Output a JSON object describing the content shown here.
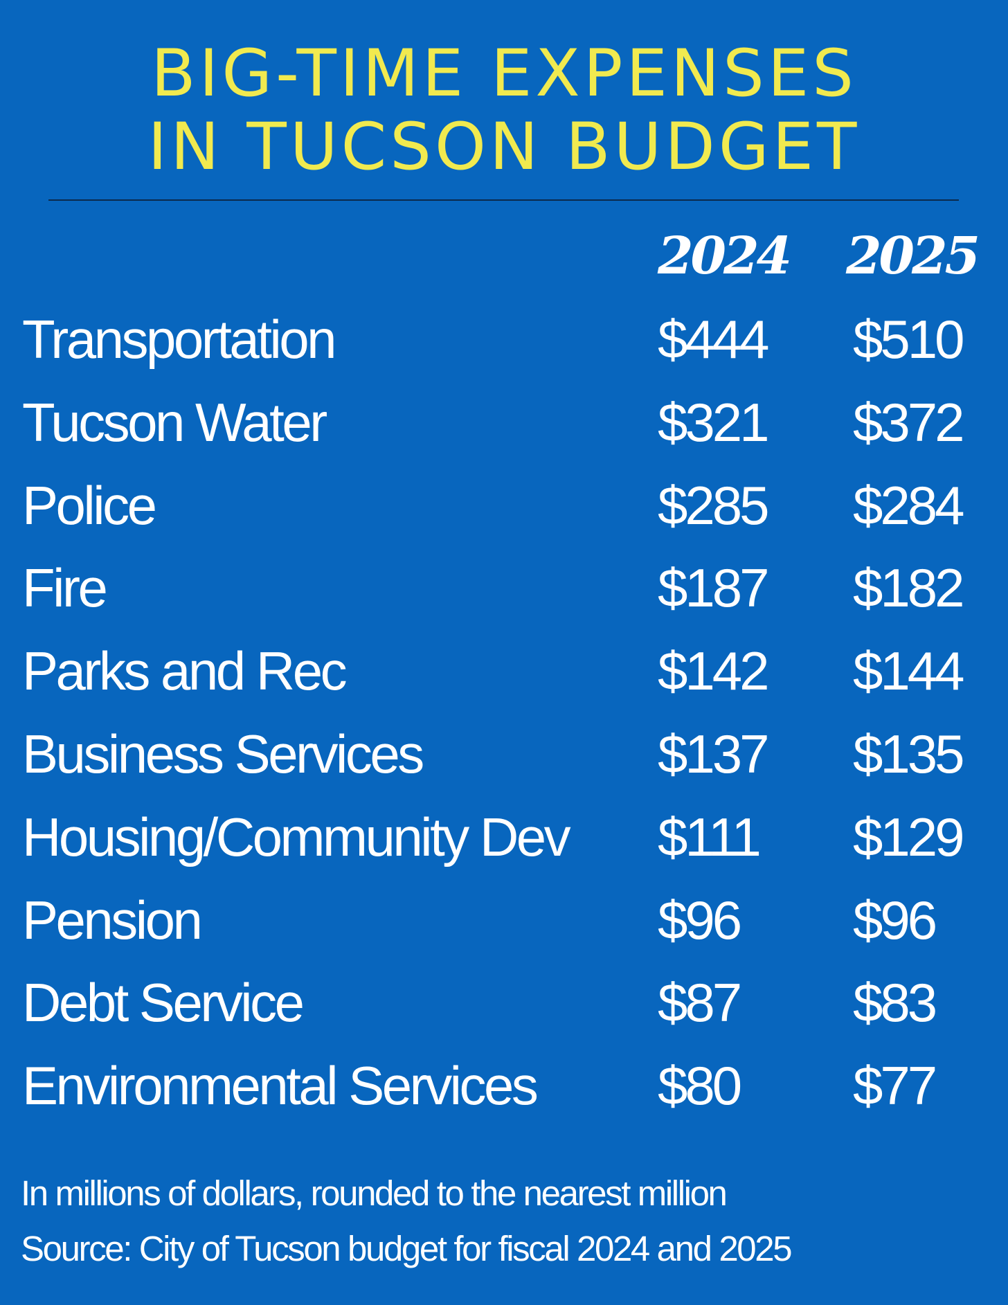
{
  "chart_data": {
    "type": "table",
    "title_lines": [
      "BIG-TIME EXPENSES",
      "IN TUCSON BUDGET"
    ],
    "columns": [
      "2024",
      "2025"
    ],
    "rows": [
      {
        "label": "Transportation",
        "v2024": "$444",
        "v2025": "$510"
      },
      {
        "label": "Tucson Water",
        "v2024": "$321",
        "v2025": "$372"
      },
      {
        "label": "Police",
        "v2024": "$285",
        "v2025": "$284"
      },
      {
        "label": "Fire",
        "v2024": "$187",
        "v2025": "$182"
      },
      {
        "label": "Parks and Rec",
        "v2024": "$142",
        "v2025": "$144"
      },
      {
        "label": "Business Services",
        "v2024": "$137",
        "v2025": "$135"
      },
      {
        "label": "Housing/Community Dev",
        "v2024": "$111",
        "v2025": "$129"
      },
      {
        "label": "Pension",
        "v2024": "$96",
        "v2025": "$96"
      },
      {
        "label": "Debt Service",
        "v2024": "$87",
        "v2025": "$83"
      },
      {
        "label": "Environmental  Services",
        "v2024": "$80",
        "v2025": "$77"
      }
    ],
    "footnotes": {
      "units": "In millions of dollars, rounded to the nearest million",
      "source": "Source: City  of Tucson budget for fiscal  2024 and 2025"
    }
  },
  "colors": {
    "background": "#0866be",
    "title": "#f1ea4f",
    "text": "#ffffff",
    "divider": "#0b2a4d"
  }
}
